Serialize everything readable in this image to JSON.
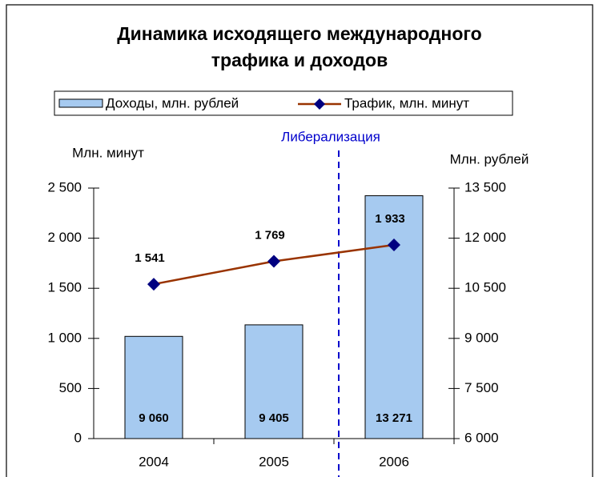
{
  "chart_data": {
    "type": "bar",
    "title": "Динамика исходящего международного трафика и доходов",
    "annotation": "Либерализация",
    "ylabel": "Млн. минут",
    "y2label": "Млн. рублей",
    "categories": [
      "2004",
      "2005",
      "2006"
    ],
    "series": [
      {
        "name": "Доходы, млн. рублей",
        "type": "bar",
        "axis": "y2",
        "color": "#a6caf0",
        "values": [
          9060,
          9405,
          13271
        ],
        "value_labels": [
          "9 060",
          "9 405",
          "13 271"
        ]
      },
      {
        "name": "Трафик, млн. минут",
        "type": "line",
        "axis": "y",
        "color": "#993300",
        "marker_color": "#000080",
        "values": [
          1541,
          1769,
          1933
        ],
        "value_labels": [
          "1 541",
          "1 769",
          "1 933"
        ]
      }
    ],
    "ylim": [
      0,
      2500
    ],
    "yticks": [
      0,
      500,
      {
        "value": 1000,
        "label": "1 000"
      },
      {
        "value": 1500,
        "label": "1 500"
      },
      {
        "value": 2000,
        "label": "2 000"
      },
      {
        "value": 2500,
        "label": "2 500"
      }
    ],
    "y2lim": [
      6000,
      13500
    ],
    "y2ticks": [
      {
        "value": 6000,
        "label": "6 000"
      },
      {
        "value": 7500,
        "label": "7 500"
      },
      {
        "value": 9000,
        "label": "9 000"
      },
      {
        "value": 10500,
        "label": "10 500"
      },
      {
        "value": 12000,
        "label": "12 000"
      },
      {
        "value": 13500,
        "label": "13 500"
      }
    ],
    "legend": "top"
  }
}
